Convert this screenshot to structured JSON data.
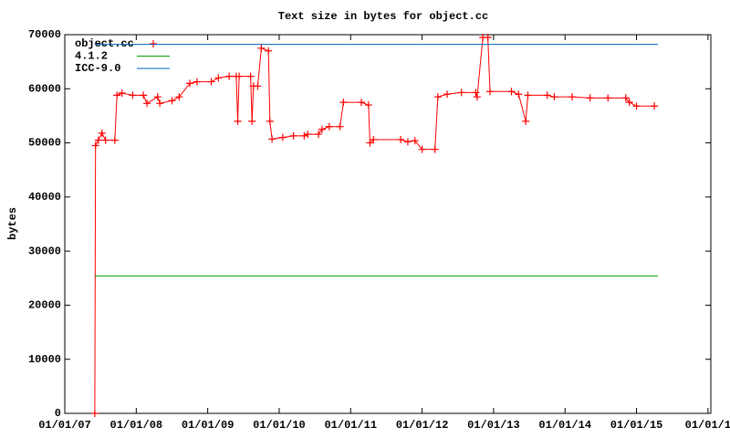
{
  "chart_data": {
    "type": "line",
    "title": "Text size in bytes for object.cc",
    "y_label": "bytes",
    "xlim": [
      2007,
      2016.04
    ],
    "ylim": [
      0,
      70000
    ],
    "xticks": [
      {
        "value": 2007,
        "label": "01/01/07"
      },
      {
        "value": 2008,
        "label": "01/01/08"
      },
      {
        "value": 2009,
        "label": "01/01/09"
      },
      {
        "value": 2010,
        "label": "01/01/10"
      },
      {
        "value": 2011,
        "label": "01/01/11"
      },
      {
        "value": 2012,
        "label": "01/01/12"
      },
      {
        "value": 2013,
        "label": "01/01/13"
      },
      {
        "value": 2014,
        "label": "01/01/14"
      },
      {
        "value": 2015,
        "label": "01/01/15"
      },
      {
        "value": 2016,
        "label": "01/01/1"
      }
    ],
    "yticks": [
      0,
      10000,
      20000,
      30000,
      40000,
      50000,
      60000,
      70000
    ],
    "legend": "top-left",
    "series": [
      {
        "name": "object.cc",
        "color": "#ff0000",
        "markers": true,
        "x": [
          2007.42,
          2007.43,
          2007.47,
          2007.52,
          2007.57,
          2007.7,
          2007.73,
          2007.8,
          2007.95,
          2008.1,
          2008.15,
          2008.3,
          2008.33,
          2008.5,
          2008.6,
          2008.75,
          2008.85,
          2009.05,
          2009.15,
          2009.3,
          2009.4,
          2009.42,
          2009.44,
          2009.6,
          2009.62,
          2009.64,
          2009.7,
          2009.75,
          2009.85,
          2009.87,
          2009.9,
          2010.05,
          2010.2,
          2010.35,
          2010.4,
          2010.55,
          2010.6,
          2010.7,
          2010.85,
          2010.9,
          2011.15,
          2011.25,
          2011.27,
          2011.32,
          2011.7,
          2011.8,
          2011.9,
          2012.0,
          2012.18,
          2012.22,
          2012.35,
          2012.55,
          2012.75,
          2012.77,
          2012.85,
          2012.92,
          2012.95,
          2013.25,
          2013.35,
          2013.45,
          2013.48,
          2013.75,
          2013.85,
          2014.1,
          2014.35,
          2014.6,
          2014.85,
          2014.9,
          2015.0,
          2015.25
        ],
        "values": [
          0,
          49500,
          50500,
          51800,
          50500,
          50500,
          58800,
          59200,
          58800,
          58800,
          57300,
          58500,
          57300,
          57800,
          58500,
          61000,
          61300,
          61300,
          62000,
          62300,
          62300,
          54000,
          62300,
          62300,
          54000,
          60500,
          60500,
          67500,
          67000,
          54000,
          50700,
          51000,
          51300,
          51300,
          51600,
          51600,
          52500,
          53000,
          53000,
          57500,
          57500,
          57000,
          50000,
          50600,
          50600,
          50200,
          50400,
          48800,
          48800,
          58500,
          59000,
          59300,
          59300,
          58500,
          69500,
          69500,
          59500,
          59500,
          59000,
          54000,
          58800,
          58800,
          58500,
          58500,
          58300,
          58300,
          58300,
          57500,
          56800,
          56800
        ]
      },
      {
        "name": "4.1.2",
        "color": "#00a000",
        "markers": false,
        "x": [
          2007.42,
          2015.3
        ],
        "values": [
          25400,
          25400
        ]
      },
      {
        "name": "ICC-9.0",
        "color": "#0060c0",
        "markers": false,
        "x": [
          2007.42,
          2015.3
        ],
        "values": [
          68200,
          68200
        ]
      }
    ]
  }
}
